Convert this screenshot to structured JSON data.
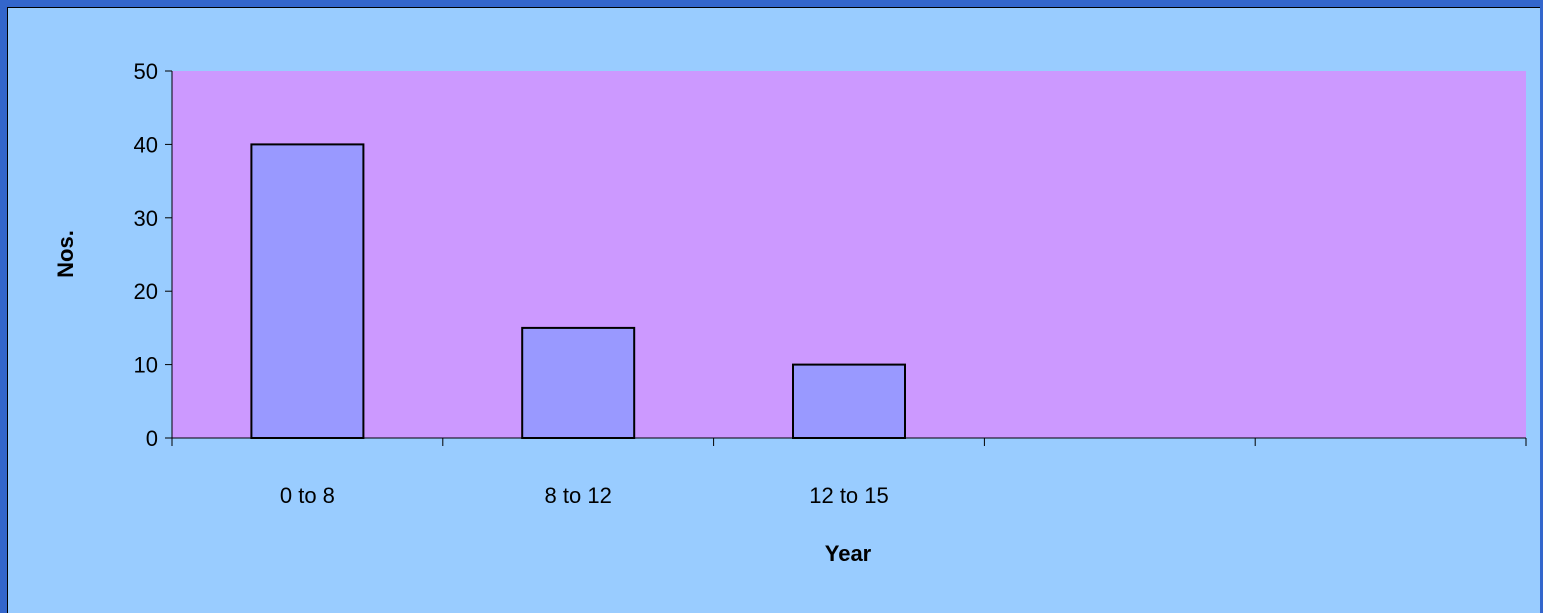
{
  "chart_data": {
    "type": "bar",
    "categories": [
      "0 to 8",
      "8 to 12",
      "12 to 15",
      "",
      ""
    ],
    "values": [
      40,
      15,
      10,
      null,
      null
    ],
    "title": "",
    "xlabel": "Year",
    "ylabel": "Nos.",
    "ylim": [
      0,
      50
    ],
    "yticks": [
      0,
      10,
      20,
      30,
      40,
      50
    ],
    "grid": false,
    "legend": "none",
    "colors": {
      "frame": "#3366cc",
      "chart_background": "#99ccff",
      "plot_background": "#cc99ff",
      "bar_fill": "#9999ff",
      "bar_stroke": "#000000"
    }
  }
}
